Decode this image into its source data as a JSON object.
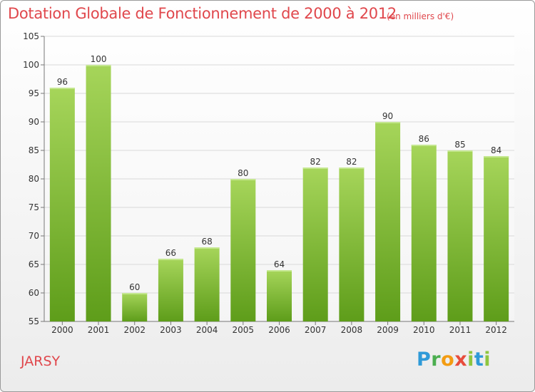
{
  "title": "Dotation Globale de Fonctionnement de 2000 à 2012",
  "subtitle": "(en milliers d'€)",
  "commune": "JARSY",
  "logo": {
    "letters": [
      "P",
      "r",
      "o",
      "x",
      "i",
      "t",
      "i"
    ],
    "colors": [
      "#2f9ad8",
      "#4bae4f",
      "#f39c12",
      "#e74c3c",
      "#8ec63f",
      "#2f9ad8",
      "#8ec63f"
    ]
  },
  "colors": {
    "title": "#e0474c",
    "bar_light": "#a6d55a",
    "bar_dark": "#5e9d1a",
    "grid": "#d9d9d9"
  },
  "chart_data": {
    "type": "bar",
    "title": "Dotation Globale de Fonctionnement de 2000 à 2012",
    "subtitle": "(en milliers d'€)",
    "categories": [
      "2000",
      "2001",
      "2002",
      "2003",
      "2004",
      "2005",
      "2006",
      "2007",
      "2008",
      "2009",
      "2010",
      "2011",
      "2012"
    ],
    "values": [
      96,
      100,
      60,
      66,
      68,
      80,
      64,
      82,
      82,
      90,
      86,
      85,
      84
    ],
    "ylim": [
      55,
      105
    ],
    "yticks": [
      55,
      60,
      65,
      70,
      75,
      80,
      85,
      90,
      95,
      100,
      105
    ],
    "grid": true
  }
}
